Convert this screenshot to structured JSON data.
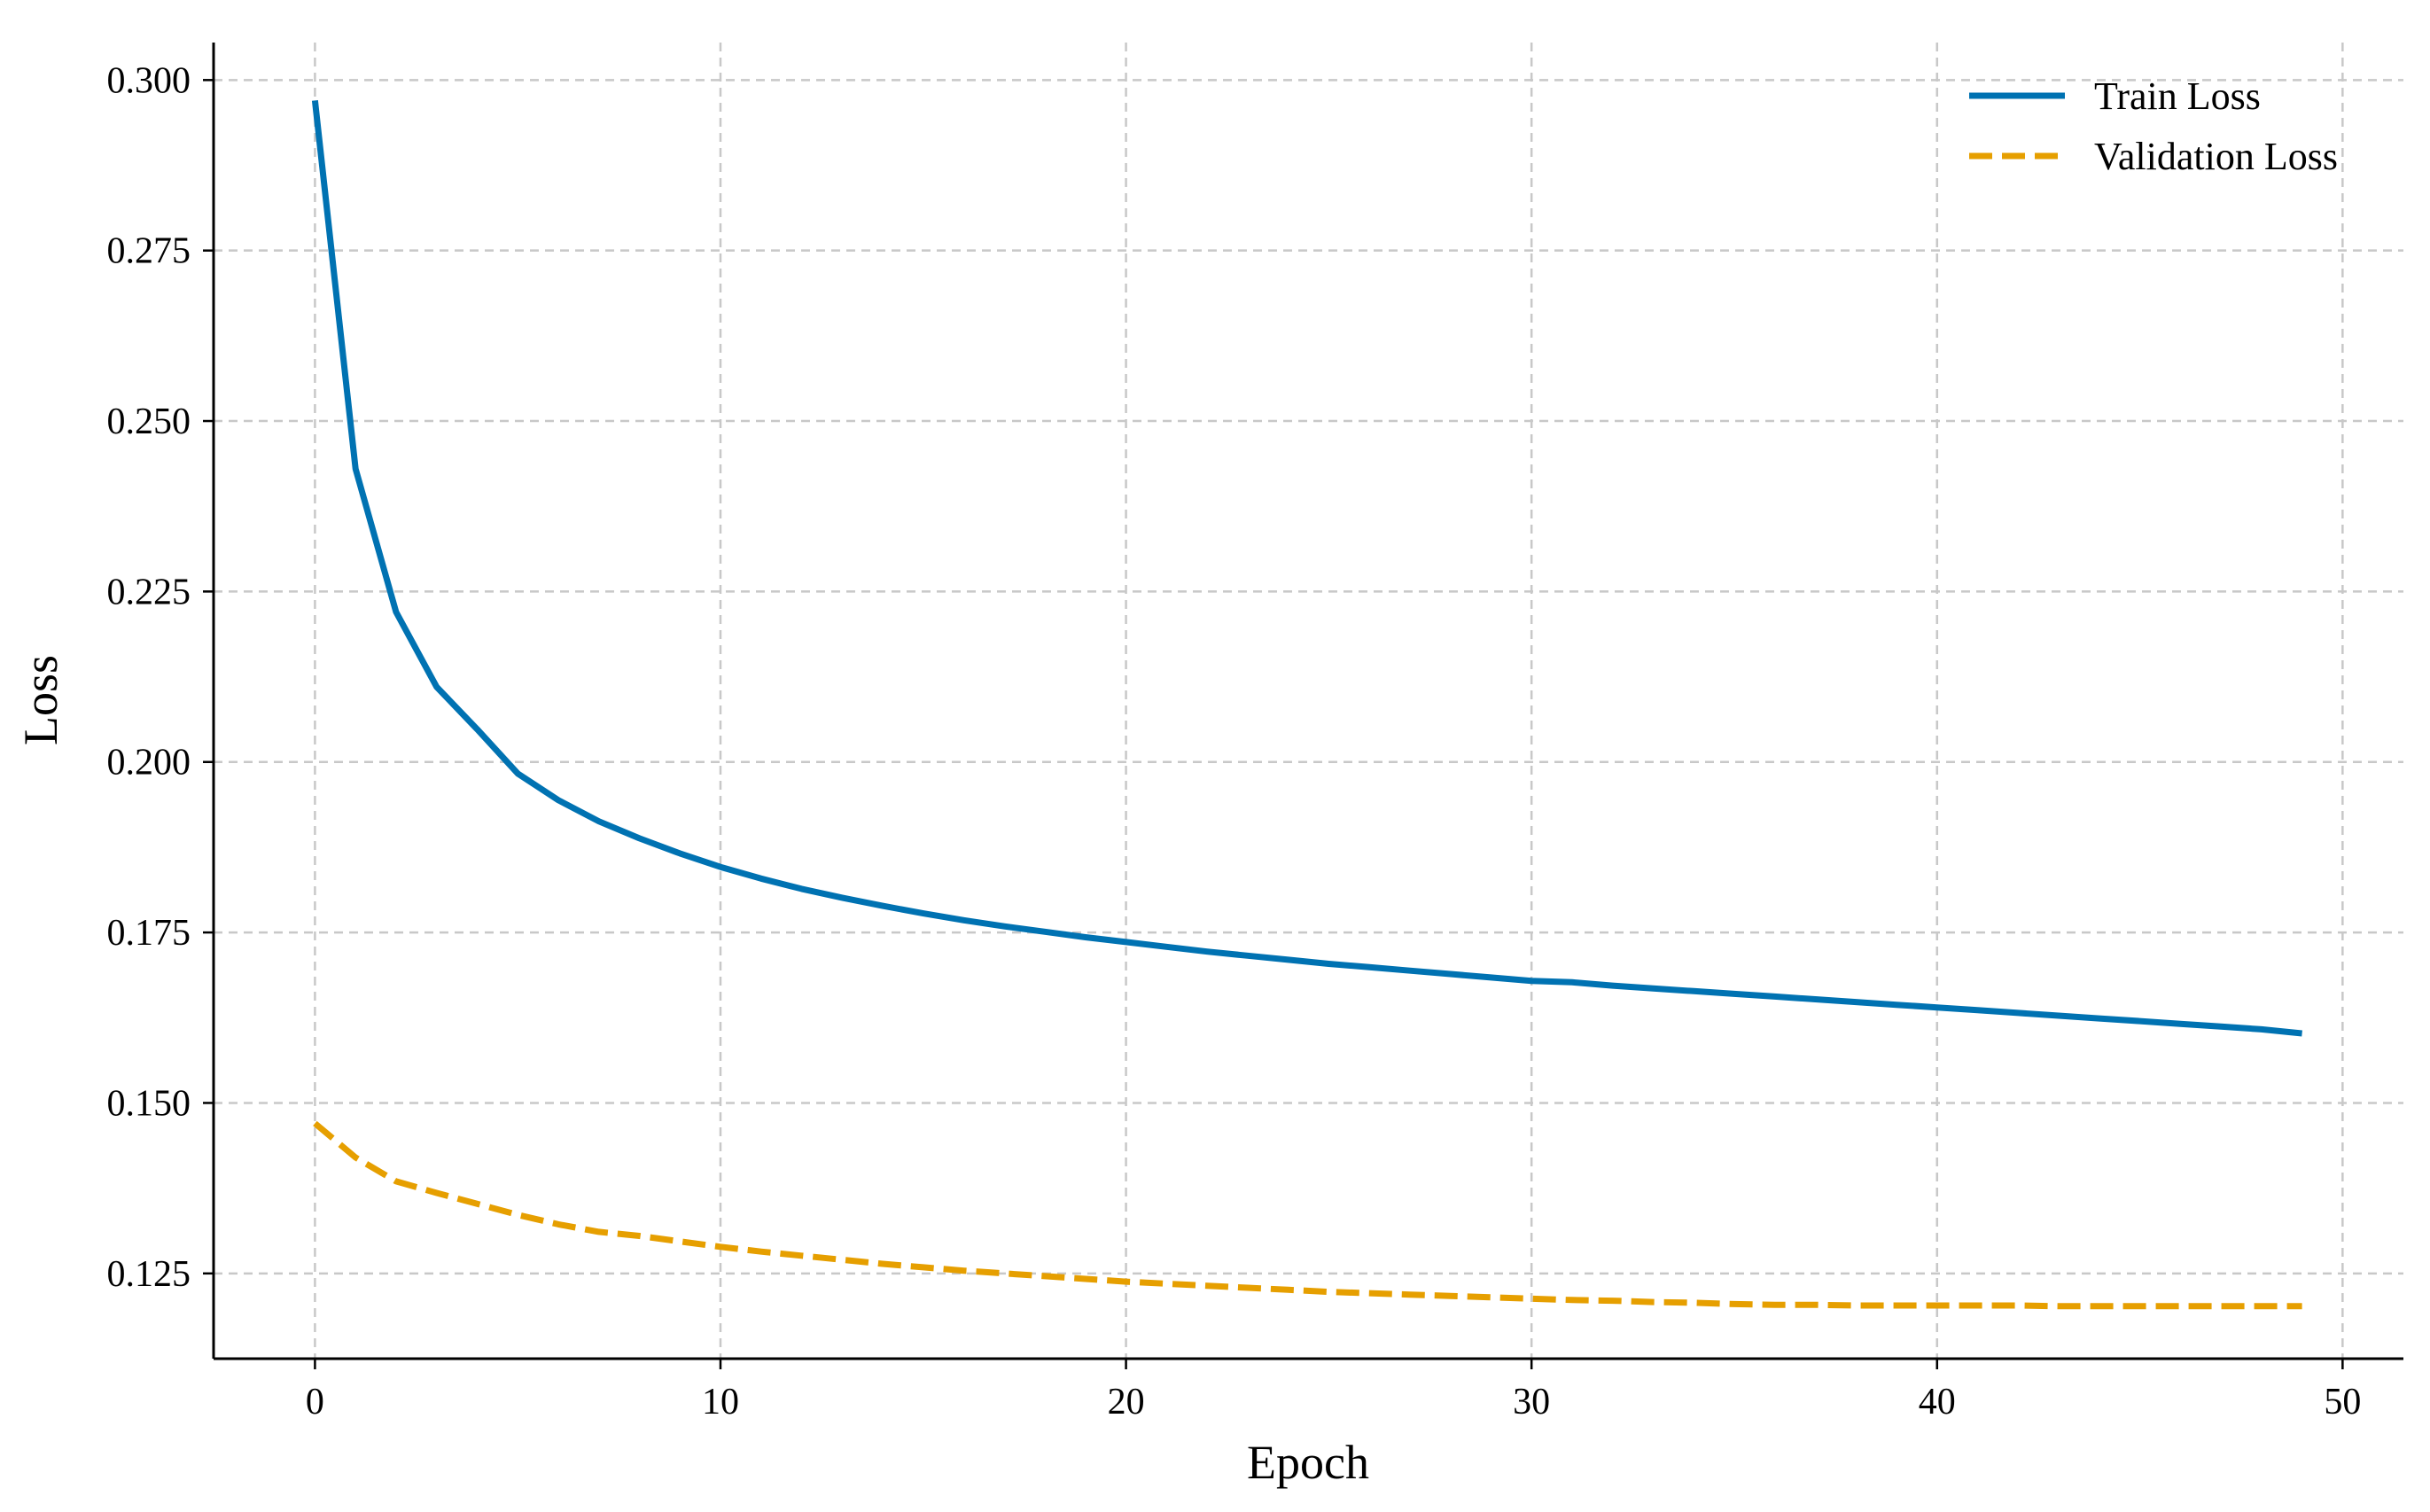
{
  "chart_data": {
    "type": "line",
    "title": "",
    "xlabel": "Epoch",
    "ylabel": "Loss",
    "xlim": [
      -2.5,
      51.5
    ],
    "ylim": [
      0.1125,
      0.3055
    ],
    "xticks": [
      0,
      10,
      20,
      30,
      40,
      50
    ],
    "xtick_labels": [
      "0",
      "10",
      "20",
      "30",
      "40",
      "50"
    ],
    "yticks": [
      0.125,
      0.15,
      0.175,
      0.2,
      0.225,
      0.25,
      0.275,
      0.3
    ],
    "ytick_labels": [
      "0.125",
      "0.150",
      "0.175",
      "0.200",
      "0.225",
      "0.250",
      "0.275",
      "0.300"
    ],
    "grid": true,
    "legend_position": "top-right",
    "x": [
      0,
      1,
      2,
      3,
      4,
      5,
      6,
      7,
      8,
      9,
      10,
      11,
      12,
      13,
      14,
      15,
      16,
      17,
      18,
      19,
      20,
      21,
      22,
      23,
      24,
      25,
      26,
      27,
      28,
      29,
      30,
      31,
      32,
      33,
      34,
      35,
      36,
      37,
      38,
      39,
      40,
      41,
      42,
      43,
      44,
      45,
      46,
      47,
      48,
      49
    ],
    "series": [
      {
        "name": "Train Loss",
        "color": "#0072B2",
        "style": "solid",
        "values": [
          0.297,
          0.243,
          0.222,
          0.211,
          0.2048,
          0.1983,
          0.1944,
          0.1913,
          0.1888,
          0.1866,
          0.1846,
          0.1829,
          0.1814,
          0.1801,
          0.1789,
          0.1778,
          0.1768,
          0.1759,
          0.1751,
          0.1743,
          0.1736,
          0.1729,
          0.1722,
          0.1716,
          0.171,
          0.1704,
          0.1699,
          0.1694,
          0.1689,
          0.1684,
          0.1679,
          0.1677,
          0.1672,
          0.1668,
          0.1664,
          0.166,
          0.1656,
          0.1652,
          0.1648,
          0.1644,
          0.164,
          0.1636,
          0.1632,
          0.1628,
          0.1624,
          0.162,
          0.1616,
          0.1612,
          0.1608,
          0.1602
        ]
      },
      {
        "name": "Validation Loss",
        "color": "#E69F00",
        "style": "dashed",
        "values": [
          0.147,
          0.142,
          0.1385,
          0.1368,
          0.1352,
          0.1336,
          0.1322,
          0.1311,
          0.1305,
          0.1297,
          0.1289,
          0.1282,
          0.1276,
          0.127,
          0.1264,
          0.1259,
          0.1254,
          0.125,
          0.1246,
          0.1242,
          0.1238,
          0.1235,
          0.1232,
          0.1229,
          0.1226,
          0.1223,
          0.1221,
          0.1219,
          0.1217,
          0.1215,
          0.1213,
          0.1211,
          0.121,
          0.1208,
          0.1207,
          0.1205,
          0.1204,
          0.1204,
          0.1203,
          0.1203,
          0.1203,
          0.1203,
          0.1203,
          0.1202,
          0.1202,
          0.1202,
          0.1202,
          0.1202,
          0.1202,
          0.1202
        ]
      }
    ]
  }
}
